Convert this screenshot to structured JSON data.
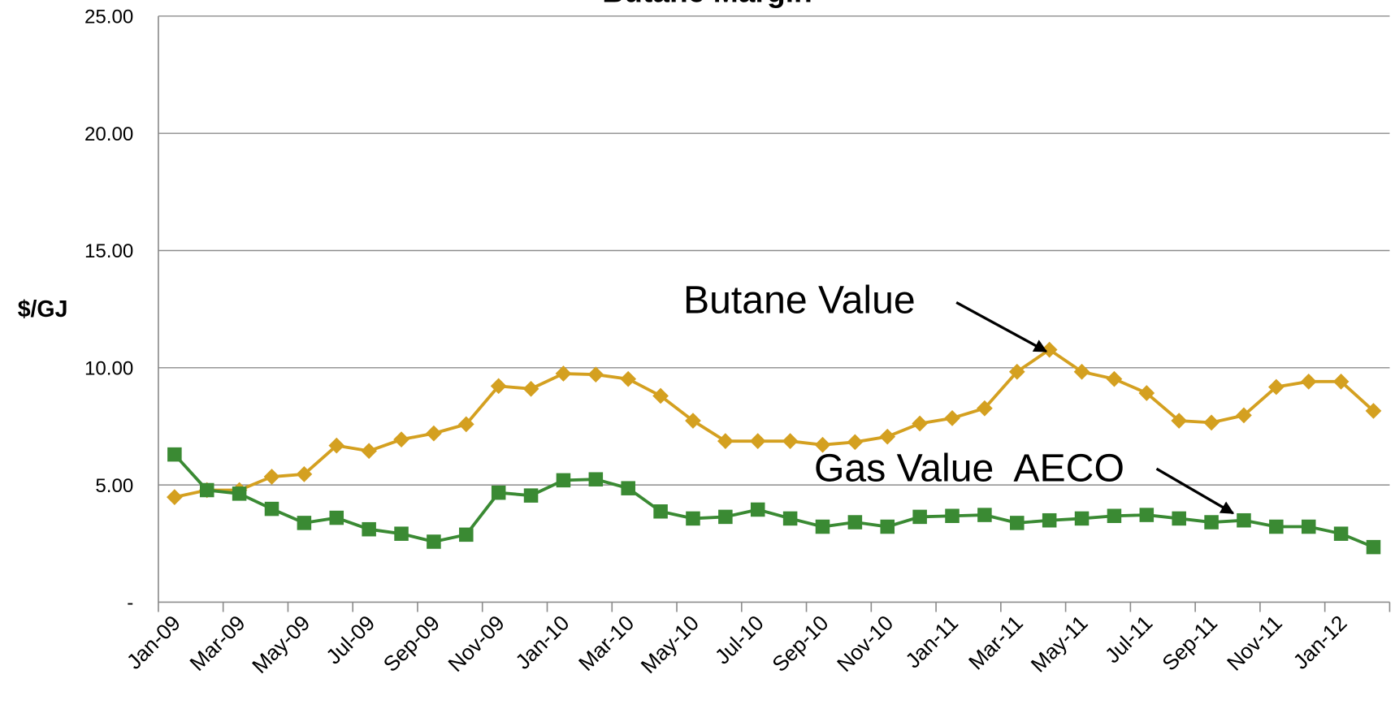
{
  "chart_data": {
    "type": "line",
    "title": "Butane Margin",
    "y_label": "$/GJ",
    "categories": [
      "Jan-09",
      null,
      "Mar-09",
      null,
      "May-09",
      null,
      "Jul-09",
      null,
      "Sep-09",
      null,
      "Nov-09",
      null,
      "Jan-10",
      null,
      "Mar-10",
      null,
      "May-10",
      null,
      "Jul-10",
      null,
      "Sep-10",
      null,
      "Nov-10",
      null,
      "Jan-11",
      null,
      "Mar-11",
      null,
      "May-11",
      null,
      "Jul-11",
      null,
      "Sep-11",
      null,
      "Nov-11",
      null,
      "Jan-12",
      null
    ],
    "series": [
      {
        "name": "Butane Value",
        "color": "#d4a020",
        "values": [
          4.48,
          4.78,
          4.78,
          5.35,
          5.46,
          6.68,
          6.45,
          6.94,
          7.2,
          7.59,
          9.22,
          9.1,
          9.75,
          9.71,
          9.52,
          8.8,
          7.74,
          6.87,
          6.87,
          6.87,
          6.71,
          6.83,
          7.06,
          7.62,
          7.85,
          8.27,
          9.83,
          10.77,
          9.83,
          9.52,
          8.92,
          7.74,
          7.66,
          7.97,
          9.18,
          9.41,
          9.41,
          8.16
        ]
      },
      {
        "name": "Gas Value  AECO",
        "color": "#3a8a33",
        "values": [
          6.3,
          4.78,
          4.63,
          3.98,
          3.38,
          3.6,
          3.11,
          2.92,
          2.58,
          2.88,
          4.67,
          4.55,
          5.2,
          5.24,
          4.86,
          3.87,
          3.57,
          3.64,
          3.95,
          3.57,
          3.22,
          3.41,
          3.22,
          3.64,
          3.68,
          3.72,
          3.38,
          3.49,
          3.57,
          3.68,
          3.72,
          3.57,
          3.41,
          3.49,
          3.22,
          3.22,
          2.92,
          2.35
        ]
      }
    ],
    "ylim": [
      0,
      25
    ],
    "yticks": [
      {
        "value": 0,
        "label": "-"
      },
      {
        "value": 5,
        "label": "5.00"
      },
      {
        "value": 10,
        "label": "10.00"
      },
      {
        "value": 15,
        "label": "15.00"
      },
      {
        "value": 20,
        "label": "20.00"
      },
      {
        "value": 25,
        "label": "25.00"
      }
    ],
    "grid": true
  }
}
